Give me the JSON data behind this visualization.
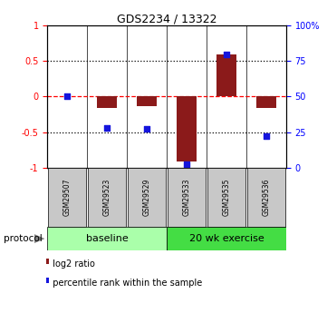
{
  "title": "GDS2234 / 13322",
  "samples": [
    "GSM29507",
    "GSM29523",
    "GSM29529",
    "GSM29533",
    "GSM29535",
    "GSM29536"
  ],
  "log2_ratio": [
    0.0,
    -0.16,
    -0.14,
    -0.92,
    0.6,
    -0.16
  ],
  "percentile_rank": [
    50,
    28,
    27,
    2,
    80,
    22
  ],
  "bar_color": "#8B1A1A",
  "dot_color": "#1515DD",
  "baseline_label": "baseline",
  "exercise_label": "20 wk exercise",
  "protocol_label": "protocol",
  "legend_log2": "log2 ratio",
  "legend_pct": "percentile rank within the sample",
  "ylim_left": [
    -1,
    1
  ],
  "ylim_right": [
    0,
    100
  ],
  "yticks_left": [
    -1,
    -0.5,
    0,
    0.5,
    1
  ],
  "yticks_right": [
    0,
    25,
    50,
    75,
    100
  ],
  "ytick_labels_right": [
    "0",
    "25",
    "50",
    "75",
    "100%"
  ],
  "bg_color": "#ffffff",
  "baseline_bg": "#aaffaa",
  "exercise_bg": "#44dd44",
  "sample_box_bg": "#c8c8c8",
  "bar_width": 0.5,
  "dot_size": 22
}
